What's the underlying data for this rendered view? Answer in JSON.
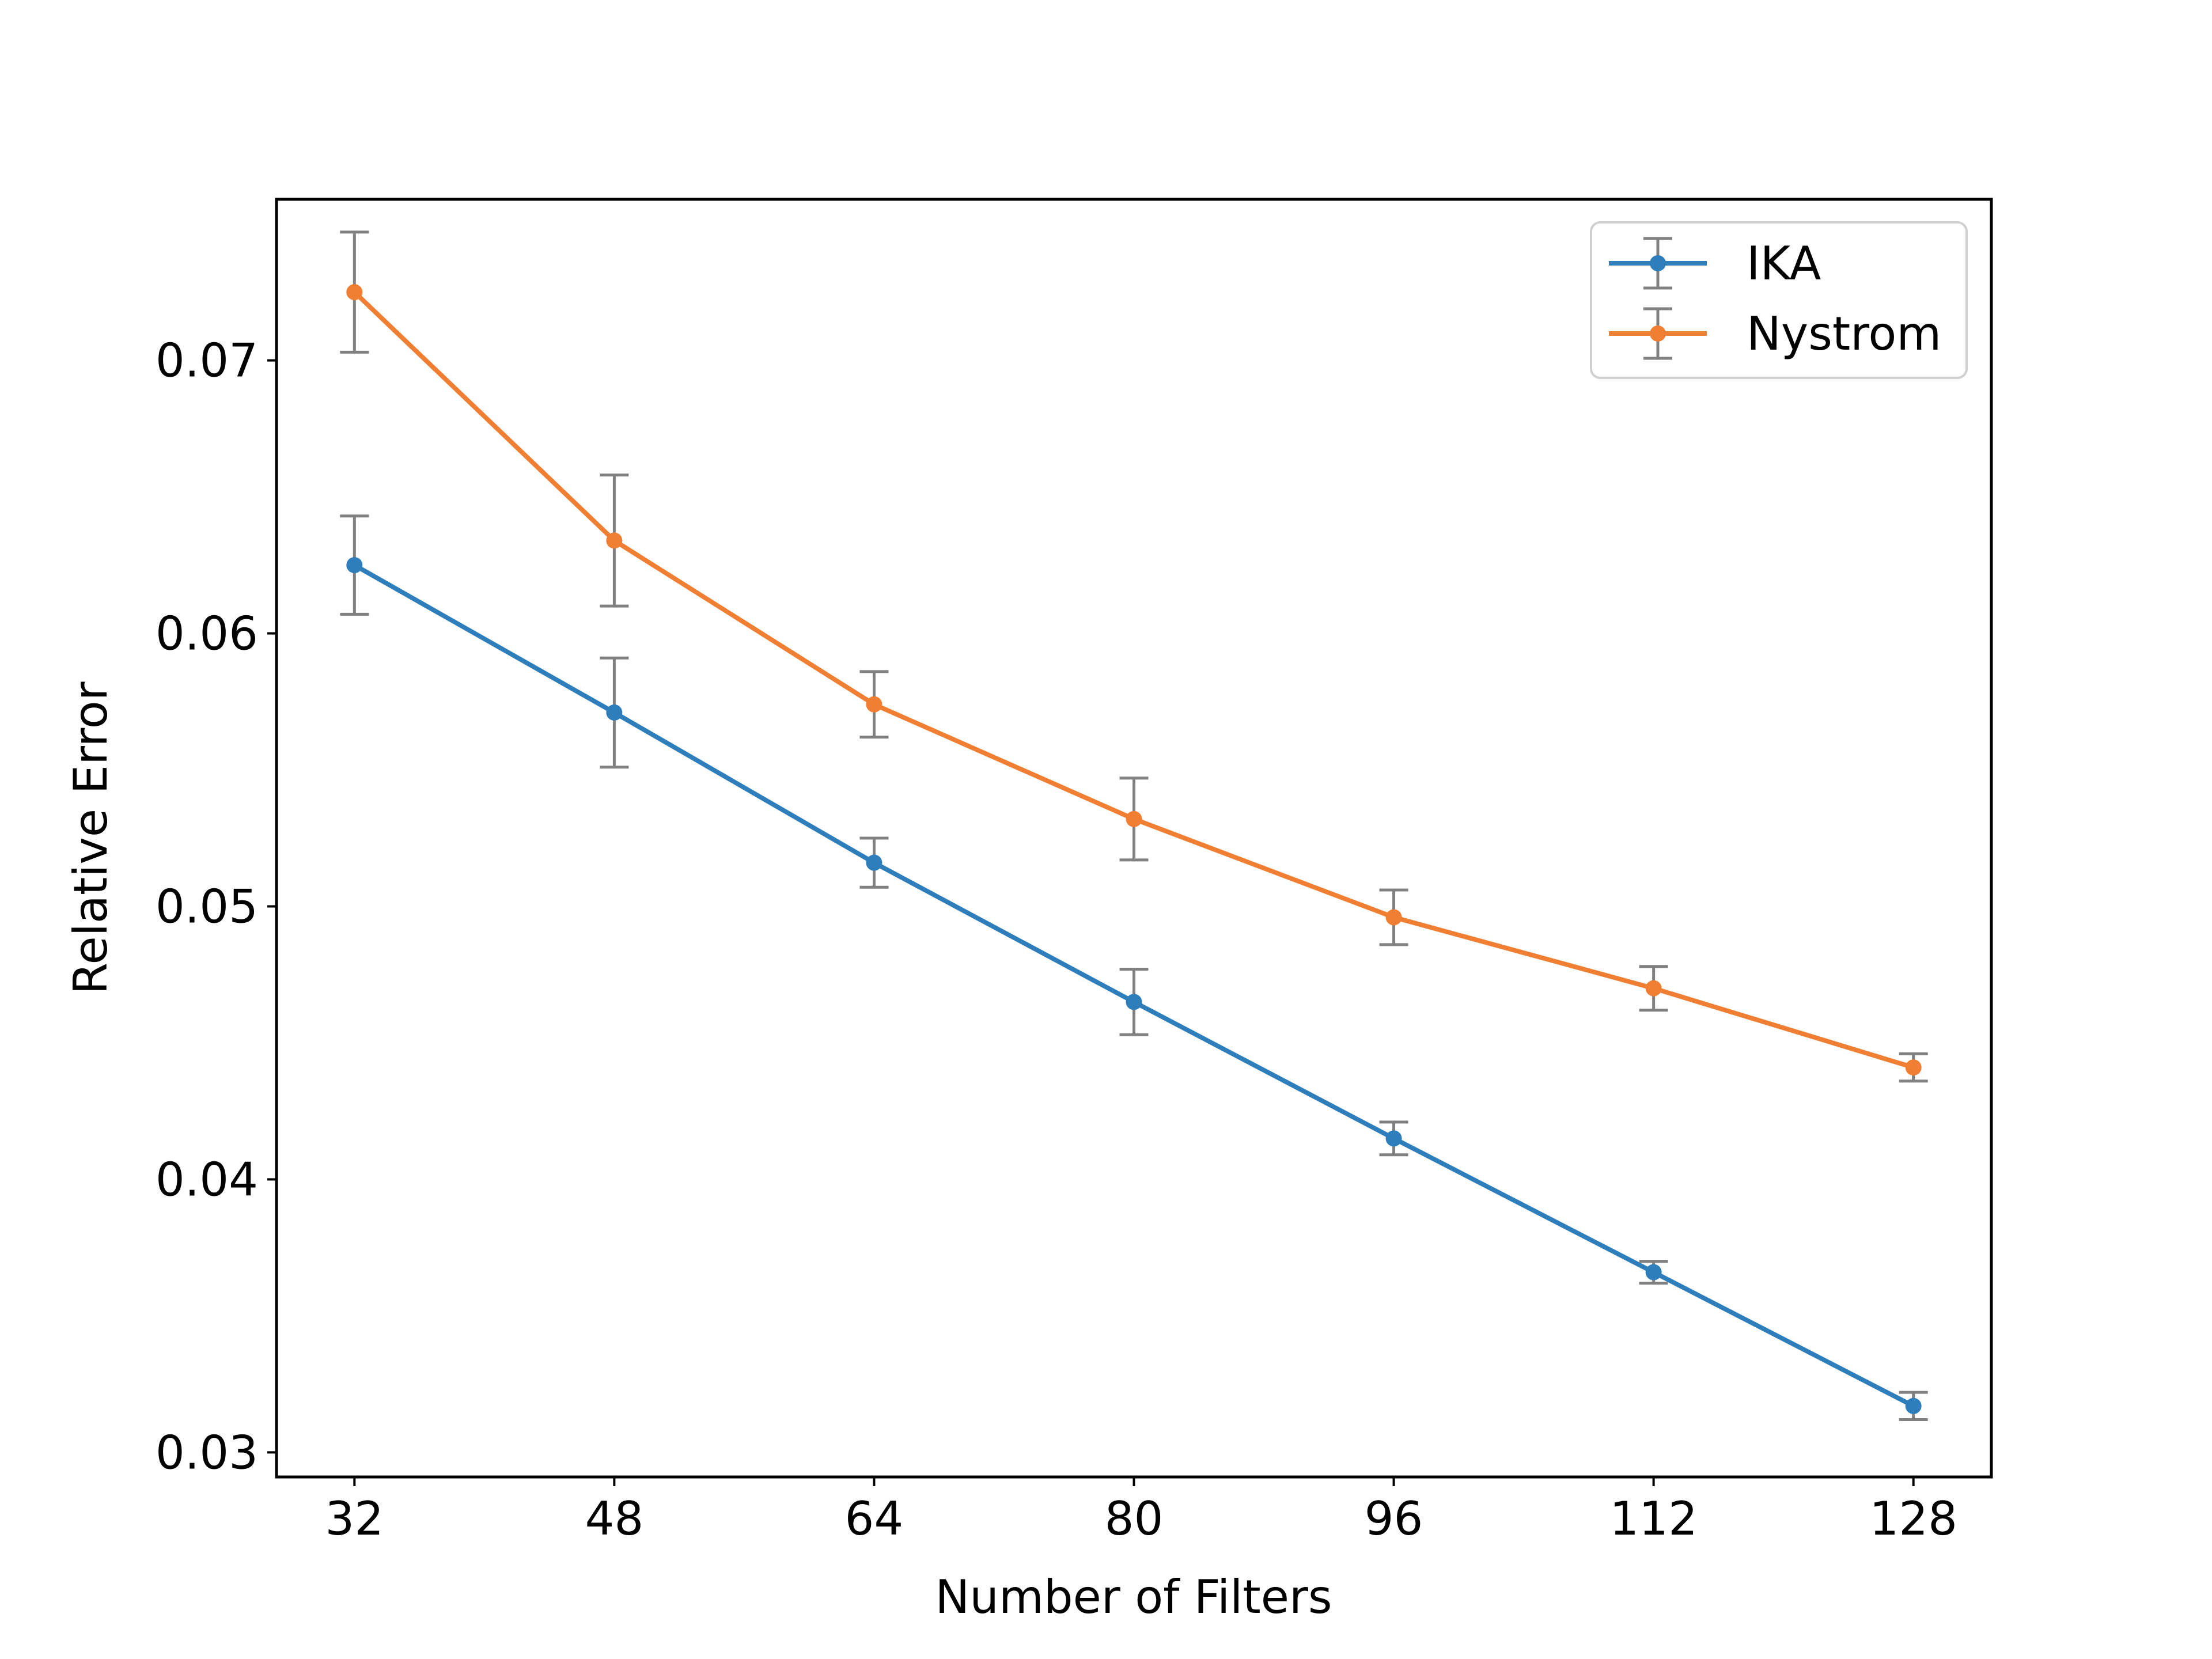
{
  "chart_data": {
    "type": "line",
    "title": "",
    "xlabel": "Number of Filters",
    "ylabel": "Relative Error",
    "x": [
      32,
      48,
      64,
      80,
      96,
      112,
      128
    ],
    "xticks": [
      32,
      48,
      64,
      80,
      96,
      112,
      128
    ],
    "xtick_labels": [
      "32",
      "48",
      "64",
      "80",
      "96",
      "112",
      "128"
    ],
    "yticks": [
      0.03,
      0.04,
      0.05,
      0.06,
      0.07
    ],
    "ytick_labels": [
      "0.03",
      "0.04",
      "0.05",
      "0.06",
      "0.07"
    ],
    "xlim": [
      27.2,
      132.8
    ],
    "ylim": [
      0.0291,
      0.0759
    ],
    "grid": false,
    "legend_position": "top-right",
    "errorbar_color": "#808080",
    "series": [
      {
        "name": "IKA",
        "color": "#2e7ebc",
        "values": [
          0.0625,
          0.0571,
          0.0516,
          0.0465,
          0.0415,
          0.0366,
          0.0317
        ],
        "errors": [
          0.0018,
          0.002,
          0.0009,
          0.0012,
          0.0006,
          0.0004,
          0.0005
        ]
      },
      {
        "name": "Nystrom",
        "color": "#f07f33",
        "values": [
          0.0725,
          0.0634,
          0.0574,
          0.0532,
          0.0496,
          0.047,
          0.0441
        ],
        "errors": [
          0.0022,
          0.0024,
          0.0012,
          0.0015,
          0.001,
          0.0008,
          0.0005
        ]
      }
    ]
  }
}
